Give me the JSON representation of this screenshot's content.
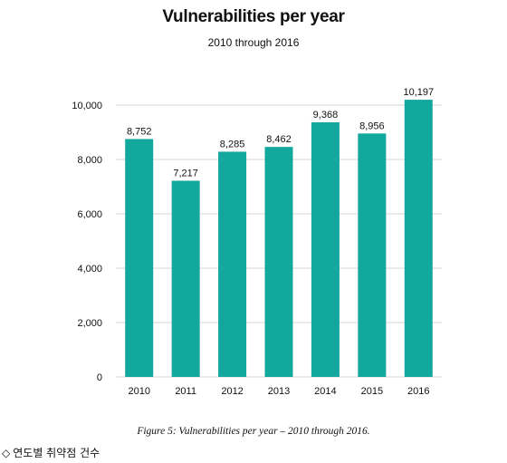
{
  "chart_data": {
    "type": "bar",
    "title": "Vulnerabilities per year",
    "subtitle": "2010 through 2016",
    "categories": [
      "2010",
      "2011",
      "2012",
      "2013",
      "2014",
      "2015",
      "2016"
    ],
    "values": [
      8752,
      7217,
      8285,
      8462,
      9368,
      8956,
      10197
    ],
    "value_labels": [
      "8,752",
      "7,217",
      "8,285",
      "8,462",
      "9,368",
      "8,956",
      "10,197"
    ],
    "y_ticks": [
      0,
      2000,
      4000,
      6000,
      8000,
      10000
    ],
    "y_tick_labels": [
      "0",
      "2,000",
      "4,000",
      "6,000",
      "8,000",
      "10,000"
    ],
    "ylim": [
      0,
      10000
    ],
    "xlabel": "",
    "ylabel": "",
    "grid": true,
    "legend": "none",
    "bar_color": "#13a89e",
    "grid_color": "#d4d4d4"
  },
  "caption": "Figure 5: Vulnerabilities per year  –  2010 through 2016.",
  "note": {
    "icon": "diamond-outline-icon",
    "glyph": "◇",
    "text": "연도별 취약점 건수"
  }
}
